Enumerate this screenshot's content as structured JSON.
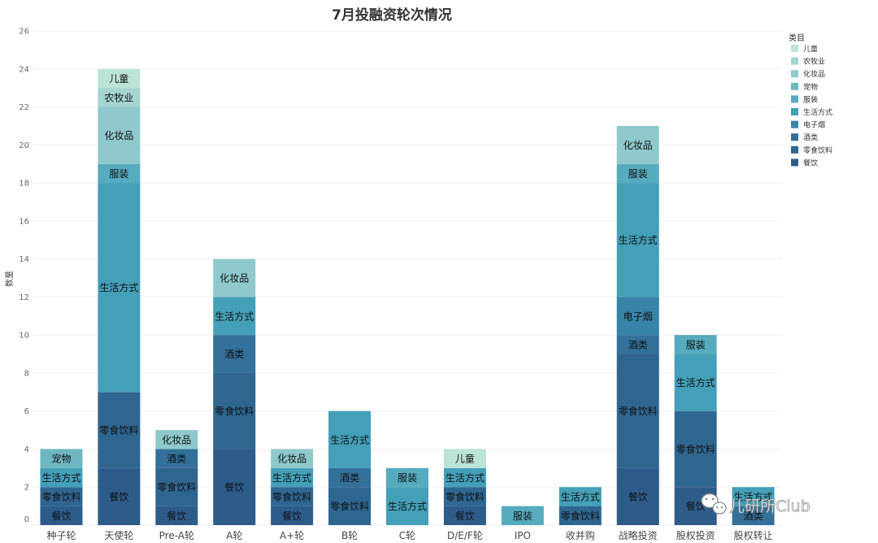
{
  "chart_data": {
    "type": "bar",
    "stacked": true,
    "title": "7月投融资轮次情况",
    "ylabel": "数量",
    "xlabel": "",
    "ylim": [
      0,
      26
    ],
    "yticks": [
      0,
      2,
      4,
      6,
      8,
      10,
      12,
      14,
      16,
      18,
      20,
      22,
      24,
      26
    ],
    "grid": true,
    "legend_title": "类目",
    "legend_position": "top-right",
    "categories": [
      "种子轮",
      "天使轮",
      "Pre-A轮",
      "A轮",
      "A+轮",
      "B轮",
      "C轮",
      "D/E/F轮",
      "IPO",
      "收并购",
      "战略投资",
      "股权投资",
      "股权转让"
    ],
    "series": [
      {
        "name": "餐饮",
        "color": "#2e5c8a",
        "values": [
          1,
          3,
          1,
          4,
          1,
          0,
          0,
          1,
          0,
          0,
          3,
          2,
          0
        ]
      },
      {
        "name": "零食饮料",
        "color": "#2f6690",
        "values": [
          1,
          4,
          2,
          4,
          1,
          2,
          0,
          1,
          0,
          1,
          6,
          4,
          0
        ]
      },
      {
        "name": "酒类",
        "color": "#33709a",
        "values": [
          0,
          0,
          1,
          2,
          0,
          1,
          0,
          0,
          0,
          0,
          1,
          0,
          1
        ]
      },
      {
        "name": "电子烟",
        "color": "#3883a8",
        "values": [
          0,
          0,
          0,
          0,
          0,
          0,
          0,
          0,
          0,
          0,
          2,
          0,
          0
        ]
      },
      {
        "name": "生活方式",
        "color": "#449fb8",
        "values": [
          1,
          11,
          0,
          2,
          1,
          3,
          2,
          1,
          0,
          1,
          6,
          3,
          1
        ]
      },
      {
        "name": "服装",
        "color": "#56abbf",
        "values": [
          0,
          1,
          0,
          0,
          0,
          0,
          1,
          0,
          1,
          0,
          1,
          1,
          0
        ]
      },
      {
        "name": "宠物",
        "color": "#6fb6c3",
        "values": [
          1,
          0,
          0,
          0,
          0,
          0,
          0,
          0,
          0,
          0,
          0,
          0,
          0
        ]
      },
      {
        "name": "化妆品",
        "color": "#8fc9cc",
        "values": [
          0,
          3,
          1,
          2,
          1,
          0,
          0,
          0,
          0,
          0,
          2,
          0,
          0
        ]
      },
      {
        "name": "农牧业",
        "color": "#a6d5d1",
        "values": [
          0,
          1,
          0,
          0,
          0,
          0,
          0,
          0,
          0,
          0,
          0,
          0,
          0
        ]
      },
      {
        "name": "儿童",
        "color": "#bce3d8",
        "values": [
          0,
          1,
          0,
          0,
          0,
          0,
          0,
          1,
          0,
          0,
          0,
          0,
          0
        ]
      }
    ],
    "legend_order": [
      "儿童",
      "农牧业",
      "化妆品",
      "宠物",
      "服装",
      "生活方式",
      "电子烟",
      "酒类",
      "零食饮料",
      "餐饮"
    ]
  },
  "watermark": {
    "text": "儿研所Club",
    "icon": "wechat-icon"
  }
}
